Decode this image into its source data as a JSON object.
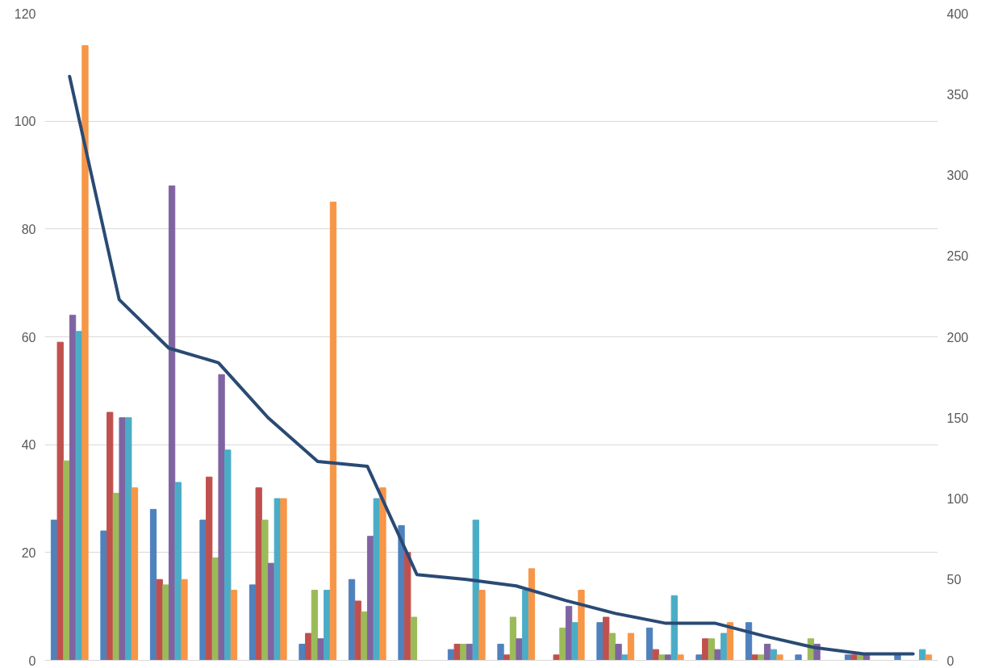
{
  "chart_data": {
    "type": "bar",
    "categories": [
      null,
      null,
      null,
      null,
      null,
      null,
      null,
      null,
      null,
      null,
      null,
      null,
      null,
      null,
      null,
      null,
      null,
      null
    ],
    "series": [
      {
        "color": "#4f81bd",
        "values": [
          26,
          24,
          28,
          26,
          14,
          3,
          15,
          25,
          2,
          3,
          0,
          7,
          6,
          1,
          7,
          1,
          1,
          1
        ]
      },
      {
        "color": "#c0504d",
        "values": [
          59,
          46,
          15,
          34,
          32,
          5,
          11,
          20,
          3,
          1,
          1,
          8,
          2,
          4,
          1,
          0,
          1,
          0
        ]
      },
      {
        "color": "#9bbb59",
        "values": [
          37,
          31,
          14,
          19,
          26,
          13,
          9,
          8,
          3,
          8,
          6,
          5,
          1,
          4,
          1,
          4,
          1,
          0
        ]
      },
      {
        "color": "#8064a2",
        "values": [
          64,
          45,
          88,
          53,
          18,
          4,
          23,
          0,
          3,
          4,
          10,
          3,
          1,
          2,
          3,
          3,
          1,
          0
        ]
      },
      {
        "color": "#4bacc6",
        "values": [
          61,
          45,
          33,
          39,
          30,
          13,
          30,
          0,
          26,
          13,
          7,
          1,
          12,
          5,
          2,
          0,
          0,
          2
        ]
      },
      {
        "color": "#f79646",
        "values": [
          114,
          32,
          15,
          13,
          30,
          85,
          32,
          0,
          13,
          17,
          13,
          5,
          1,
          7,
          1,
          0,
          0,
          1
        ]
      },
      {
        "type": "line",
        "axis": "y2",
        "color": "#2a4a74",
        "values": [
          361,
          223,
          193,
          184,
          150,
          123,
          120,
          53,
          50,
          46,
          37,
          29,
          23,
          23,
          15,
          8,
          4,
          4
        ]
      }
    ],
    "ylim": [
      0,
      120
    ],
    "yticks": [
      0,
      20,
      40,
      60,
      80,
      100,
      120
    ],
    "y2lim": [
      0,
      400
    ],
    "y2ticks": [
      0,
      50,
      100,
      150,
      200,
      250,
      300,
      350,
      400
    ],
    "grid": "y"
  }
}
